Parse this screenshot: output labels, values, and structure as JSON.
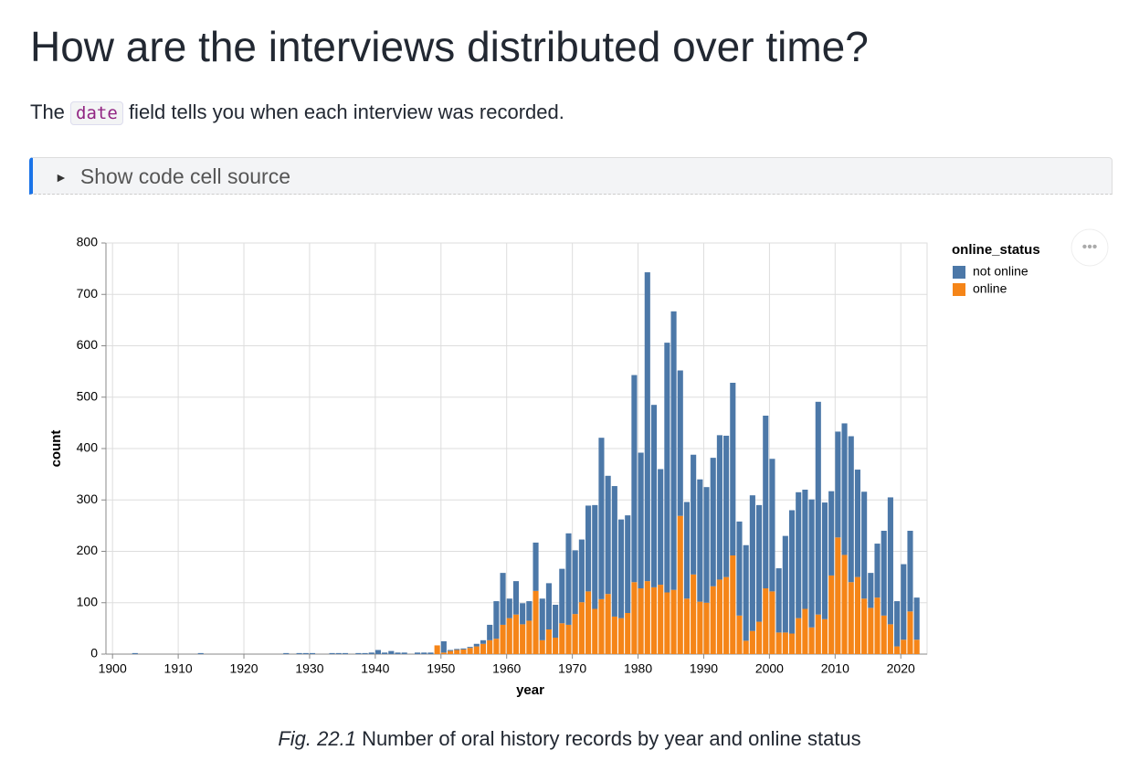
{
  "heading": "How are the interviews distributed over time?",
  "paragraph": {
    "before": "The",
    "code": "date",
    "after": "field tells you when each interview was recorded."
  },
  "details_summary": "Show code cell source",
  "caption": {
    "label": "Fig. 22.1",
    "text": "Number of oral history records by year and online status"
  },
  "chart_data": {
    "type": "bar",
    "stacked": true,
    "x_label": "year",
    "y_label": "count",
    "legend_title": "online_status",
    "legend_position": "right",
    "grid": true,
    "xlim": [
      1899,
      2024
    ],
    "xticks": [
      1900,
      1910,
      1920,
      1930,
      1940,
      1950,
      1960,
      1970,
      1980,
      1990,
      2000,
      2010,
      2020
    ],
    "ylim": [
      0,
      800
    ],
    "yticks": [
      0,
      100,
      200,
      300,
      400,
      500,
      600,
      700,
      800
    ],
    "x": [
      1903,
      1913,
      1926,
      1928,
      1929,
      1930,
      1933,
      1934,
      1935,
      1937,
      1938,
      1939,
      1940,
      1941,
      1942,
      1943,
      1944,
      1946,
      1947,
      1948,
      1949,
      1950,
      1951,
      1952,
      1953,
      1954,
      1955,
      1956,
      1957,
      1958,
      1959,
      1960,
      1961,
      1962,
      1963,
      1964,
      1965,
      1966,
      1967,
      1968,
      1969,
      1970,
      1971,
      1972,
      1973,
      1974,
      1975,
      1976,
      1977,
      1978,
      1979,
      1980,
      1981,
      1982,
      1983,
      1984,
      1985,
      1986,
      1987,
      1988,
      1989,
      1990,
      1991,
      1992,
      1993,
      1994,
      1995,
      1996,
      1997,
      1998,
      1999,
      2000,
      2001,
      2002,
      2003,
      2004,
      2005,
      2006,
      2007,
      2008,
      2009,
      2010,
      2011,
      2012,
      2013,
      2014,
      2015,
      2016,
      2017,
      2018,
      2019,
      2020,
      2021,
      2022
    ],
    "series": [
      {
        "name": "not online",
        "color": "#4c78a8",
        "values": [
          2,
          2,
          2,
          2,
          2,
          2,
          2,
          2,
          2,
          2,
          2,
          3,
          8,
          3,
          6,
          3,
          3,
          3,
          3,
          3,
          0,
          22,
          2,
          2,
          2,
          2,
          5,
          7,
          30,
          73,
          101,
          38,
          65,
          41,
          38,
          94,
          81,
          90,
          64,
          106,
          178,
          124,
          122,
          167,
          202,
          314,
          230,
          254,
          192,
          190,
          403,
          264,
          601,
          355,
          225,
          486,
          542,
          283,
          188,
          233,
          238,
          225,
          250,
          281,
          275,
          336,
          183,
          186,
          264,
          227,
          336,
          258,
          125,
          188,
          240,
          245,
          232,
          249,
          414,
          227,
          164,
          206,
          256,
          284,
          209,
          208,
          68,
          105,
          165,
          247,
          88,
          147,
          157,
          82
        ]
      },
      {
        "name": "online",
        "color": "#f58518",
        "values": [
          0,
          0,
          0,
          0,
          0,
          0,
          0,
          0,
          0,
          0,
          0,
          0,
          0,
          0,
          0,
          0,
          0,
          0,
          0,
          0,
          17,
          3,
          6,
          8,
          9,
          12,
          15,
          20,
          27,
          30,
          57,
          70,
          77,
          58,
          65,
          123,
          27,
          48,
          32,
          60,
          57,
          78,
          101,
          122,
          88,
          107,
          117,
          73,
          70,
          80,
          140,
          128,
          142,
          130,
          135,
          120,
          125,
          269,
          108,
          155,
          102,
          100,
          132,
          145,
          150,
          192,
          75,
          26,
          45,
          63,
          128,
          122,
          42,
          42,
          40,
          70,
          88,
          52,
          77,
          68,
          153,
          227,
          193,
          140,
          150,
          108,
          90,
          110,
          75,
          58,
          15,
          28,
          83,
          28
        ]
      }
    ]
  }
}
